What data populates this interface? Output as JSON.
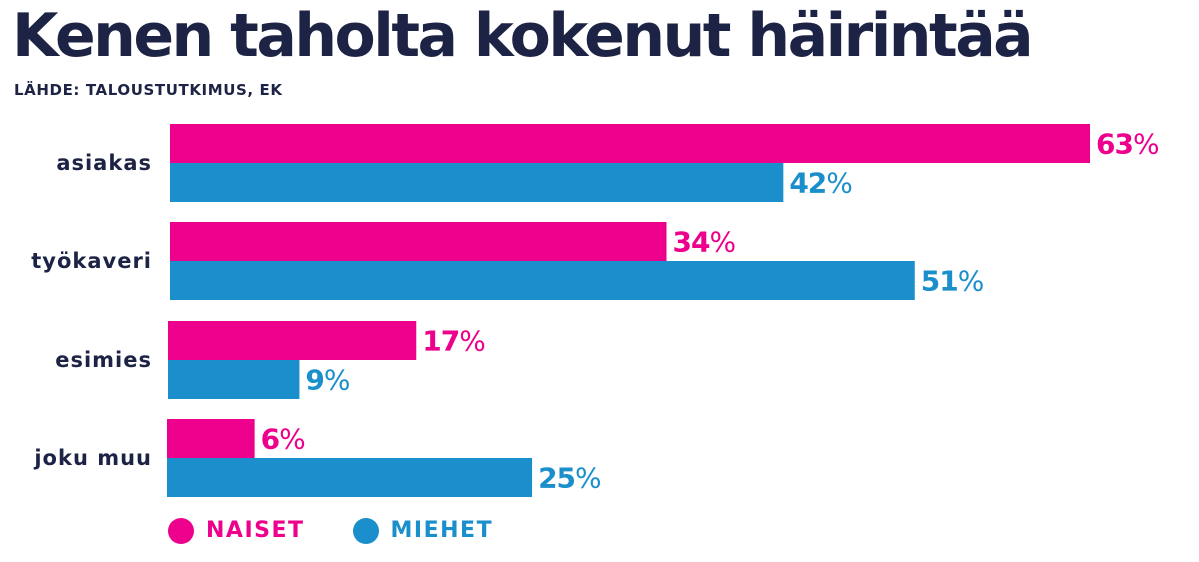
{
  "title": "Kenen taholta kokenut häirintää",
  "source": "LÄHDE: TALOUSTUTKIMUS, EK",
  "colors": {
    "naiset": "#ec008c",
    "miehet": "#1a8fcb",
    "text": "#1d2345"
  },
  "legend": {
    "naiset": "NAISET",
    "miehet": "MIEHET"
  },
  "chart_data": {
    "type": "bar",
    "orientation": "horizontal",
    "title": "Kenen taholta kokenut häirintää",
    "categories": [
      "asiakas",
      "työkaveri",
      "esimies",
      "joku muu"
    ],
    "series": [
      {
        "name": "NAISET",
        "values": [
          63,
          34,
          17,
          6
        ]
      },
      {
        "name": "MIEHET",
        "values": [
          42,
          51,
          9,
          25
        ]
      }
    ],
    "value_suffix": "%",
    "xlim": [
      0,
      63
    ],
    "grid": false,
    "legend_position": "bottom-left"
  }
}
